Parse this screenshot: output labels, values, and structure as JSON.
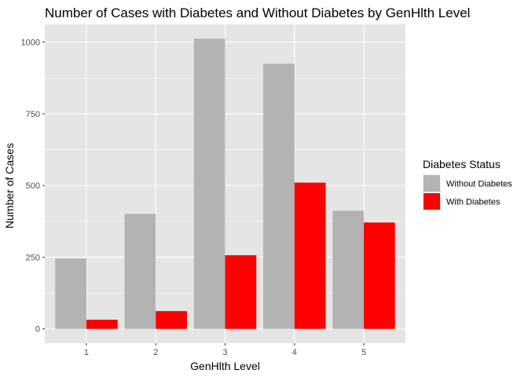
{
  "chart_data": {
    "type": "bar",
    "title": "Number of Cases with Diabetes and Without Diabetes by GenHlth Level",
    "xlabel": "GenHlth Level",
    "ylabel": "Number of Cases",
    "categories": [
      "1",
      "2",
      "3",
      "4",
      "5"
    ],
    "series": [
      {
        "name": "Without Diabetes",
        "color": "#b3b3b3",
        "values": [
          245,
          401,
          1012,
          925,
          412
        ]
      },
      {
        "name": "With Diabetes",
        "color": "#ff0000",
        "values": [
          32,
          62,
          257,
          510,
          371
        ]
      }
    ],
    "yticks": [
      0,
      250,
      500,
      750,
      1000
    ],
    "ylim": [
      -50,
      1062
    ],
    "grid": true,
    "legend": {
      "title": "Diabetes Status",
      "position": "right"
    },
    "panel_background": "#e5e5e5",
    "grid_color": "#ffffff"
  }
}
